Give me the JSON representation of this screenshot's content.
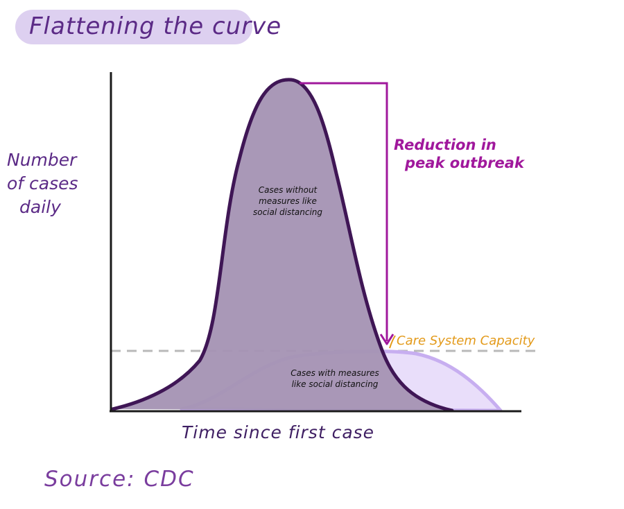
{
  "title": "Flattening the curve",
  "ylabel": [
    "Number",
    "of cases",
    "daily"
  ],
  "xlabel": "Time since first case",
  "source": "Source: CDC",
  "annotations": {
    "reduction": [
      "Reduction in",
      "peak outbreak"
    ],
    "capacity": "Care System Capacity",
    "without_measures": [
      "Cases without",
      "measures like",
      "social distancing"
    ],
    "with_measures": [
      "Cases with measures",
      "like social distancing"
    ]
  },
  "colors": {
    "title_pill": "#ddd0f0",
    "peak_fill": "#a594b4",
    "peak_outline": "#3f1655",
    "flat_fill": "#e9defa",
    "flat_outline": "#c7aef0",
    "reduction_arrow": "#a0189c",
    "capacity_label": "#e39a1a",
    "capacity_line": "#b9b9b9",
    "axes": "#1a1a1a"
  }
}
